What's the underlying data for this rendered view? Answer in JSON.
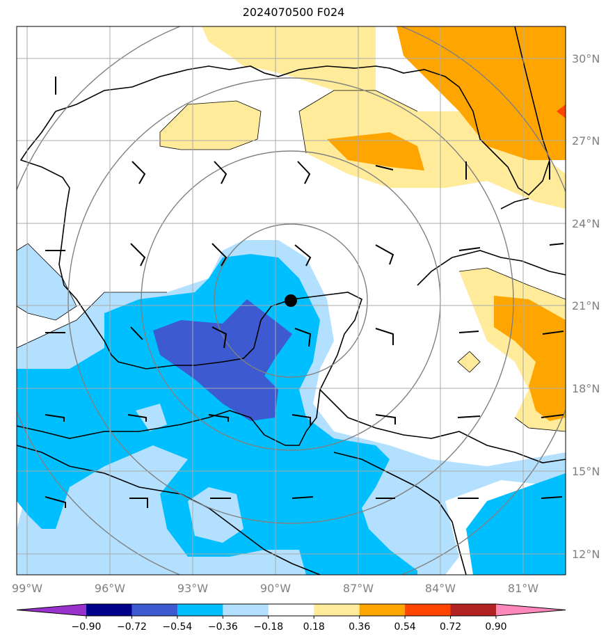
{
  "title": "2024070500 F024",
  "lon_ticks": [
    "99°W",
    "96°W",
    "93°W",
    "90°W",
    "87°W",
    "84°W",
    "81°W"
  ],
  "lat_ticks": [
    "30°N",
    "27°N",
    "24°N",
    "21°N",
    "18°N",
    "15°N",
    "12°N"
  ],
  "colorbar": {
    "labels": [
      "−0.90",
      "−0.72",
      "−0.54",
      "−0.36",
      "−0.18",
      "0.18",
      "0.36",
      "0.54",
      "0.72",
      "0.90"
    ],
    "colors": [
      "#9932cc",
      "#00008b",
      "#3d5ad0",
      "#00bfff",
      "#b3e0ff",
      "#ffffff",
      "#ffeb99",
      "#ffa500",
      "#ff4500",
      "#b22222",
      "#ff88bb"
    ]
  },
  "center_marker": {
    "lon": "89.6°W",
    "lat": "21.2°N"
  },
  "colors": {
    "grid": "#aaaaaa",
    "coast": "#000000",
    "rings": "#808080"
  }
}
